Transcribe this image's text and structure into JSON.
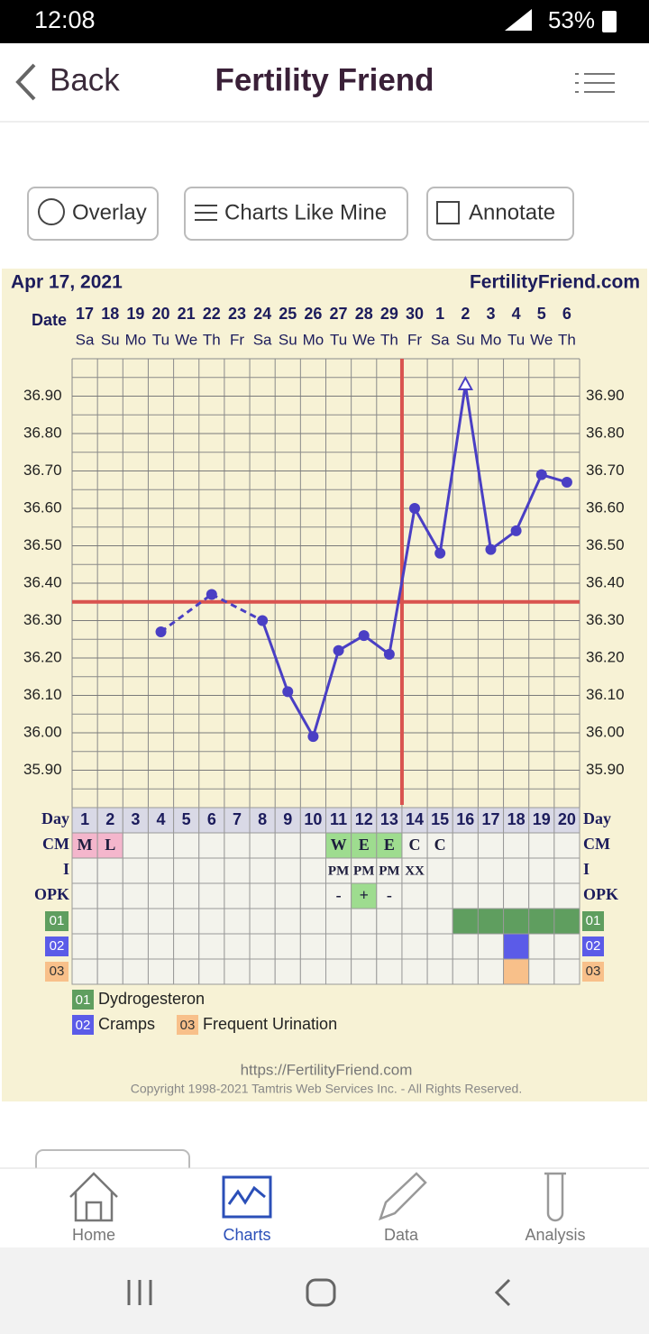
{
  "status_bar": {
    "time": "12:08",
    "battery": "53%"
  },
  "header": {
    "back": "Back",
    "title": "Fertility Friend"
  },
  "toolbar": {
    "buttons": [
      "Overlay",
      "Charts Like Mine",
      "Annotate"
    ]
  },
  "chart_data": {
    "type": "line",
    "date_label": "Apr 17, 2021",
    "site": "FertilityFriend.com",
    "date_row_label": "Date",
    "categories": [
      "17",
      "18",
      "19",
      "20",
      "21",
      "22",
      "23",
      "24",
      "25",
      "26",
      "27",
      "28",
      "29",
      "30",
      "1",
      "2",
      "3",
      "4",
      "5",
      "6"
    ],
    "weekdays": [
      "Sa",
      "Su",
      "Mo",
      "Tu",
      "We",
      "Th",
      "Fr",
      "Sa",
      "Su",
      "Mo",
      "Tu",
      "We",
      "Th",
      "Fr",
      "Sa",
      "Su",
      "Mo",
      "Tu",
      "We",
      "Th"
    ],
    "values": [
      null,
      null,
      null,
      36.27,
      null,
      36.37,
      null,
      36.3,
      36.11,
      35.99,
      36.22,
      36.26,
      36.21,
      36.6,
      36.48,
      36.93,
      36.49,
      36.54,
      36.69,
      36.67
    ],
    "color": "#4a3fc4",
    "gap_style": "dashed",
    "open_markers": [
      15
    ],
    "coverline": 36.35,
    "ovulation_index": 12,
    "marker_line_color": "#d9534f",
    "ylim": [
      35.8,
      37.0
    ],
    "grid_step": 0.05,
    "yticks": [
      {
        "value": 35.9,
        "label": "35.90"
      },
      {
        "value": 36.0,
        "label": "36.00"
      },
      {
        "value": 36.1,
        "label": "36.10"
      },
      {
        "value": 36.2,
        "label": "36.20"
      },
      {
        "value": 36.3,
        "label": "36.30"
      },
      {
        "value": 36.4,
        "label": "36.40"
      },
      {
        "value": 36.5,
        "label": "36.50"
      },
      {
        "value": 36.6,
        "label": "36.60"
      },
      {
        "value": 36.7,
        "label": "36.70"
      },
      {
        "value": 36.8,
        "label": "36.80"
      },
      {
        "value": 36.9,
        "label": "36.90"
      }
    ]
  },
  "table": {
    "rows": [
      {
        "label": "Day",
        "cells": [
          1,
          2,
          3,
          4,
          5,
          6,
          7,
          8,
          9,
          10,
          11,
          12,
          13,
          14,
          15,
          16,
          17,
          18,
          19,
          20
        ]
      },
      {
        "label": "CM",
        "cells": [
          {
            "text": "M",
            "color": "#f4b6cc"
          },
          {
            "text": "L",
            "color": "#f4b6cc"
          },
          null,
          null,
          null,
          null,
          null,
          null,
          null,
          null,
          {
            "text": "W",
            "color": "#9edc8f"
          },
          {
            "text": "E",
            "color": "#9edc8f"
          },
          {
            "text": "E",
            "color": "#9edc8f"
          },
          {
            "text": "C"
          },
          {
            "text": "C"
          },
          null,
          null,
          null,
          null,
          null
        ]
      },
      {
        "label": "I",
        "cells": [
          null,
          null,
          null,
          null,
          null,
          null,
          null,
          null,
          null,
          null,
          {
            "text": "PM"
          },
          {
            "text": "PM"
          },
          {
            "text": "PM"
          },
          {
            "text": "XX"
          },
          null,
          null,
          null,
          null,
          null,
          null
        ]
      },
      {
        "label": "OPK",
        "cells": [
          null,
          null,
          null,
          null,
          null,
          null,
          null,
          null,
          null,
          null,
          {
            "text": "-"
          },
          {
            "text": "+",
            "color": "#9edc8f"
          },
          {
            "text": "-"
          },
          null,
          null,
          null,
          null,
          null,
          null,
          null
        ]
      },
      {
        "label": "01",
        "color": "#5f9e5f",
        "cells": [
          null,
          null,
          null,
          null,
          null,
          null,
          null,
          null,
          null,
          null,
          null,
          null,
          null,
          null,
          null,
          {
            "color": "#5f9e5f"
          },
          {
            "color": "#5f9e5f"
          },
          {
            "color": "#5f9e5f"
          },
          {
            "color": "#5f9e5f"
          },
          {
            "color": "#5f9e5f"
          }
        ]
      },
      {
        "label": "02",
        "color": "#5b5be8",
        "cells": [
          null,
          null,
          null,
          null,
          null,
          null,
          null,
          null,
          null,
          null,
          null,
          null,
          null,
          null,
          null,
          null,
          null,
          {
            "color": "#5b5be8"
          },
          null,
          null
        ]
      },
      {
        "label": "03",
        "color": "#f8c08a",
        "cells": [
          null,
          null,
          null,
          null,
          null,
          null,
          null,
          null,
          null,
          null,
          null,
          null,
          null,
          null,
          null,
          null,
          null,
          {
            "color": "#f8c08a"
          },
          null,
          null
        ]
      }
    ]
  },
  "legend": [
    {
      "code": "01",
      "label": "Dydrogesteron",
      "color": "#5f9e5f"
    },
    {
      "code": "02",
      "label": "Cramps",
      "color": "#5b5be8"
    },
    {
      "code": "03",
      "label": "Frequent Urination",
      "color": "#f8c08a"
    }
  ],
  "footer": {
    "url": "https://FertilityFriend.com",
    "copyright": "Copyright 1998-2021 Tamtris Web Services Inc. - All Rights Reserved."
  },
  "nav": {
    "items": [
      "Home",
      "Charts",
      "Data",
      "Analysis"
    ],
    "active": 1
  }
}
